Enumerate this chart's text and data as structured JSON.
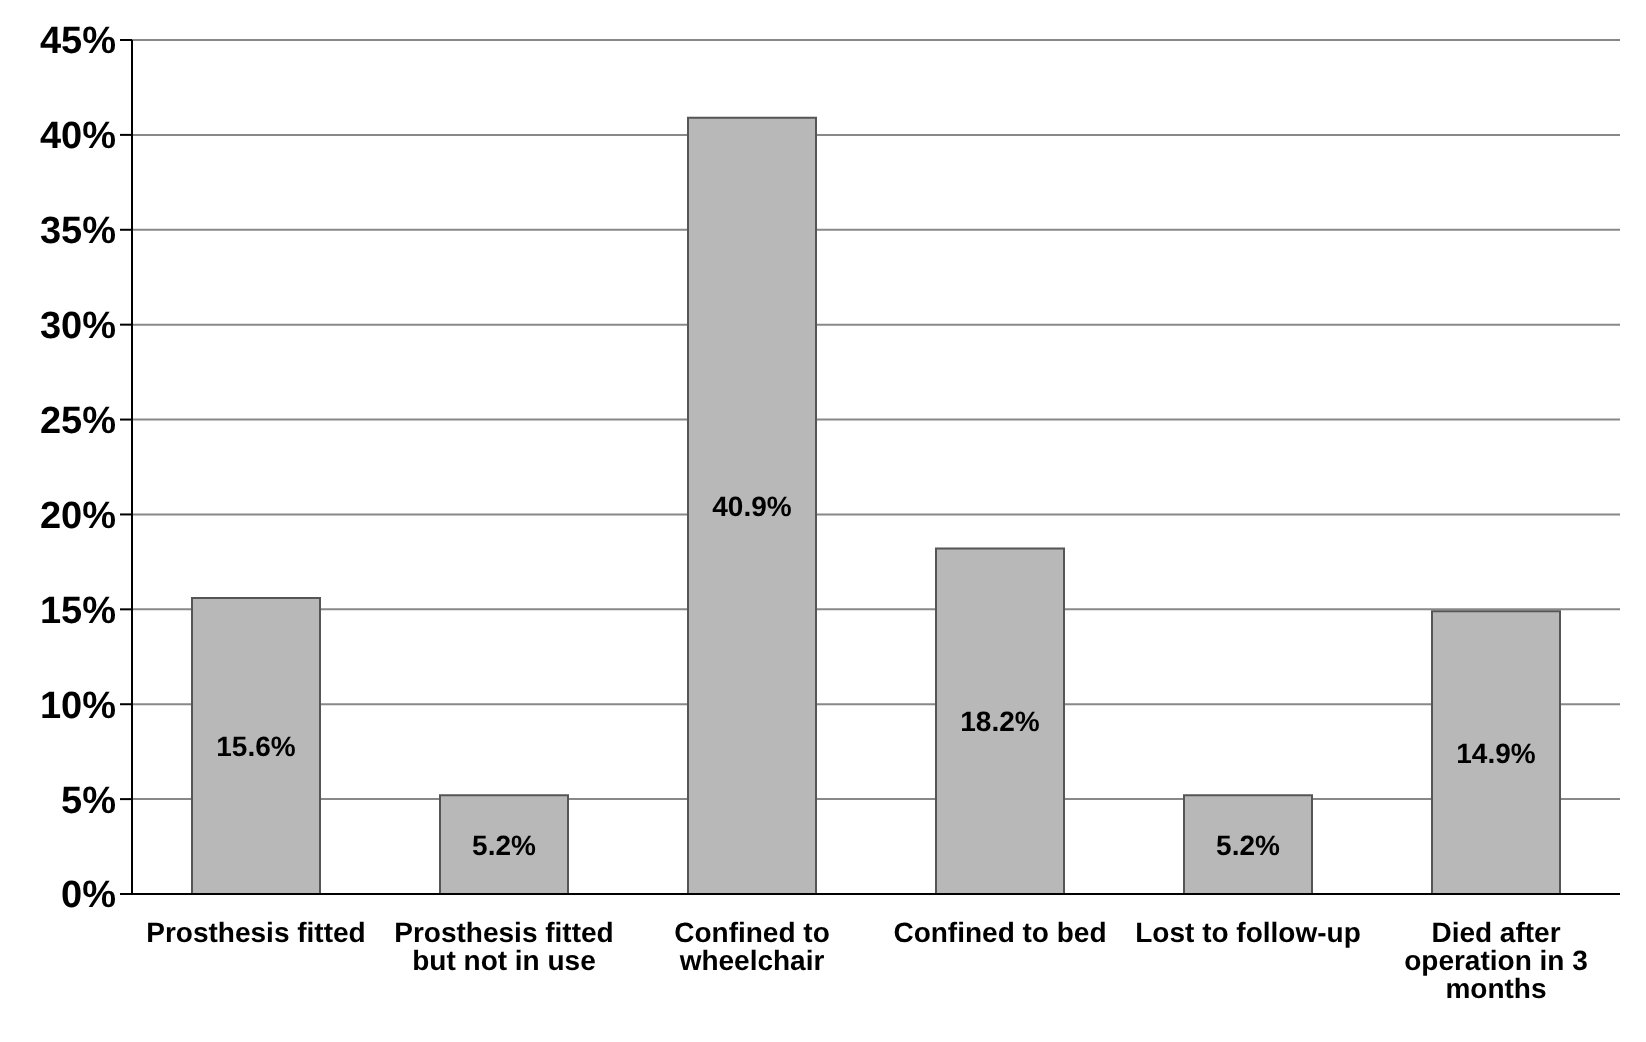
{
  "chart_data": {
    "type": "bar",
    "categories": [
      "Prosthesis fitted",
      "Prosthesis fitted but not in use",
      "Confined to wheelchair",
      "Confined to bed",
      "Lost to follow-up",
      "Died after operation in 3 months"
    ],
    "values": [
      15.6,
      5.2,
      40.9,
      18.2,
      5.2,
      14.9
    ],
    "value_labels": [
      "15.6%",
      "5.2%",
      "40.9%",
      "18.2%",
      "5.2%",
      "14.9%"
    ],
    "color": "#b8b8b8",
    "ylim": [
      0,
      45
    ],
    "yticks": [
      {
        "value": 0,
        "label": "0%"
      },
      {
        "value": 5,
        "label": "5%"
      },
      {
        "value": 10,
        "label": "10%"
      },
      {
        "value": 15,
        "label": "15%"
      },
      {
        "value": 20,
        "label": "20%"
      },
      {
        "value": 25,
        "label": "25%"
      },
      {
        "value": 30,
        "label": "30%"
      },
      {
        "value": 35,
        "label": "35%"
      },
      {
        "value": 40,
        "label": "40%"
      },
      {
        "value": 45,
        "label": "45%"
      }
    ],
    "grid": "y"
  }
}
